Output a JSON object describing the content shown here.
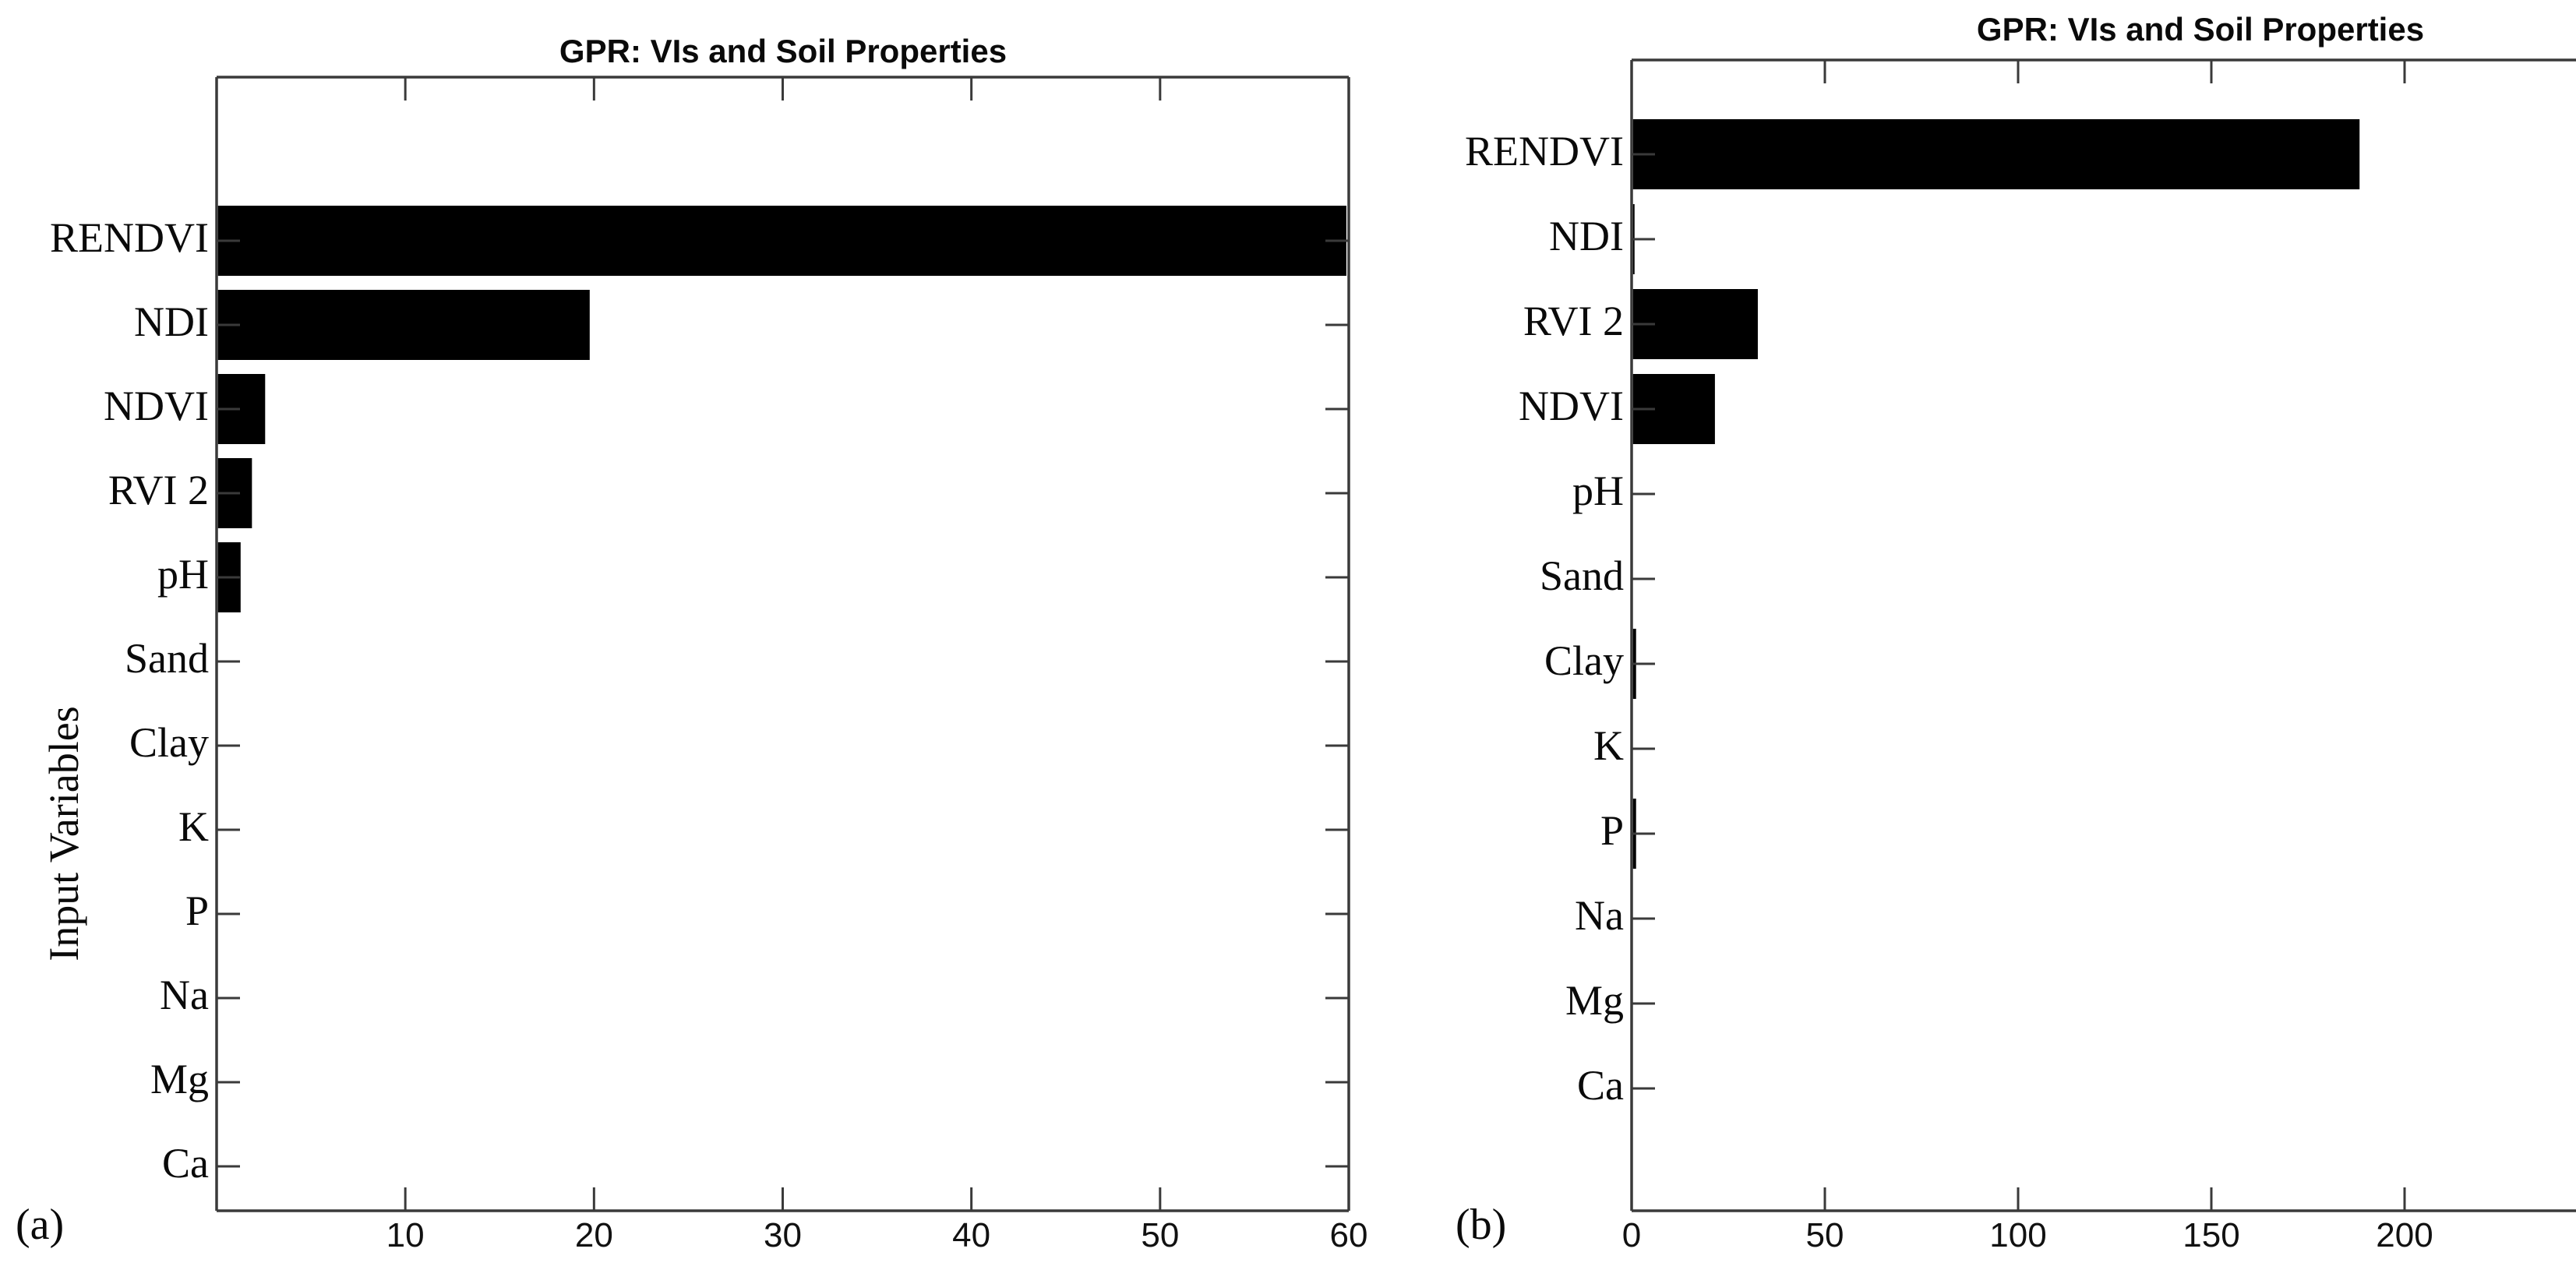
{
  "captions": {
    "a": "(a)",
    "b": "(b)"
  },
  "colors": {
    "bar": "#000000",
    "axis": "#3a3a3a",
    "background": "#ffffff",
    "text": "#000000"
  },
  "chart_data": [
    {
      "panel": "a",
      "type": "bar",
      "orientation": "horizontal",
      "title": "GPR: VIs and Soil Properties",
      "xlabel": "",
      "ylabel": "Input Variables",
      "categories": [
        "RENDVI",
        "NDI",
        "NDVI",
        "RVI 2",
        "pH",
        "Sand",
        "Clay",
        "K",
        "P",
        "Na",
        "Mg",
        "Ca"
      ],
      "values": [
        59.8,
        19.7,
        2.5,
        1.8,
        1.2,
        0,
        0,
        0,
        0,
        0,
        0,
        0
      ],
      "xlim": [
        0,
        60
      ],
      "xticks": [
        10,
        20,
        30,
        40,
        50,
        60
      ],
      "grid": false,
      "legend": null,
      "bar_color": "#000000"
    },
    {
      "panel": "b",
      "type": "bar",
      "orientation": "horizontal",
      "title": "GPR: VIs and Soil Properties",
      "xlabel": "",
      "ylabel": "",
      "categories": [
        "RENDVI",
        "NDI",
        "RVI 2",
        "NDVI",
        "pH",
        "Sand",
        "Clay",
        "K",
        "P",
        "Na",
        "Mg",
        "Ca"
      ],
      "values": [
        188,
        0.4,
        32.3,
        21.2,
        0,
        0,
        0.8,
        0,
        0.8,
        0,
        0,
        0
      ],
      "xlim": [
        0,
        300
      ],
      "xlim_visible_max": 244,
      "xticks": [
        0,
        50,
        100,
        150,
        200
      ],
      "grid": false,
      "legend": null,
      "bar_color": "#000000"
    }
  ]
}
